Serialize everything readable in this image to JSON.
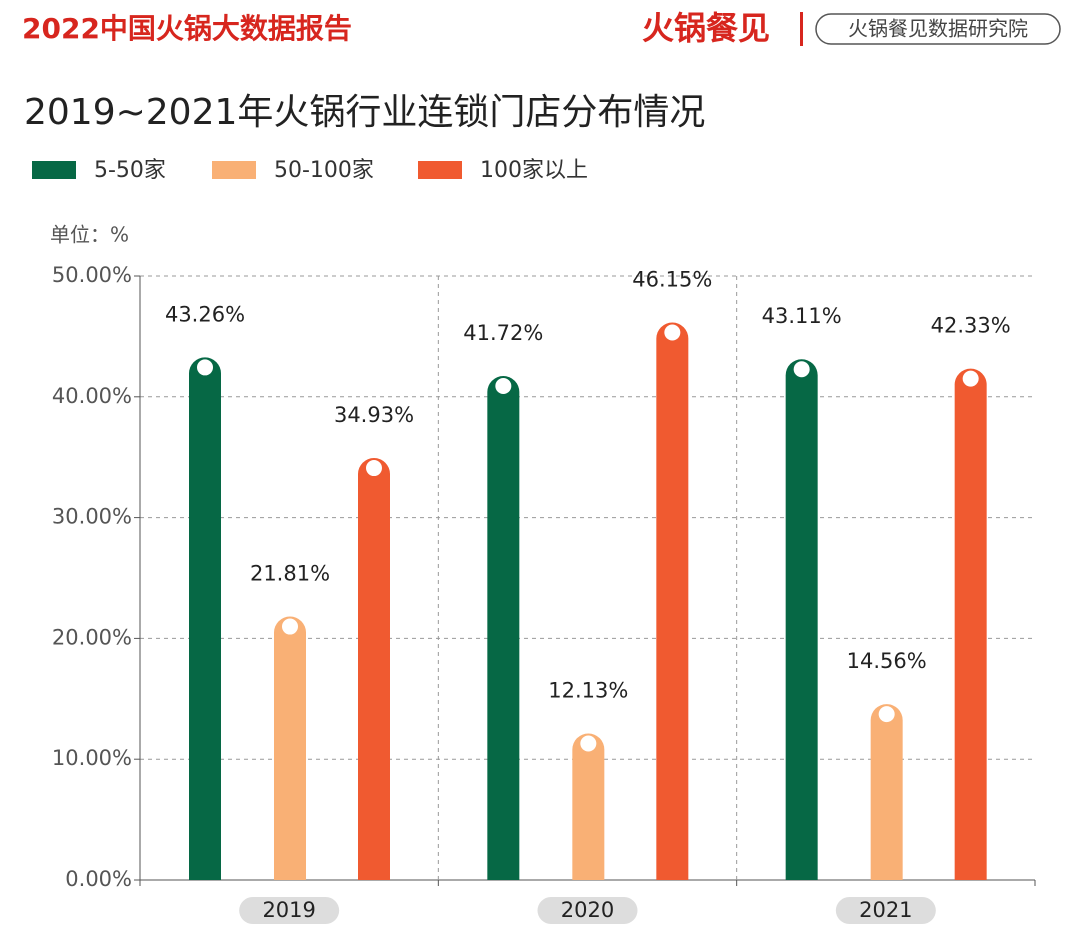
{
  "header": {
    "report": "2022中国火锅大数据报告",
    "brand": "火锅餐见",
    "institute": "火锅餐见数据研究院"
  },
  "chart_data": {
    "type": "bar",
    "title": "2019~2021年火锅行业连锁门店分布情况",
    "unit_label": "单位：%",
    "categories": [
      "2019",
      "2020",
      "2021"
    ],
    "series": [
      {
        "name": "5-50家",
        "color": "#066845",
        "values": [
          43.26,
          41.72,
          43.11
        ],
        "value_labels": [
          "43.26%",
          "41.72%",
          "43.11%"
        ]
      },
      {
        "name": "50-100家",
        "color": "#f9b075",
        "values": [
          21.81,
          12.13,
          14.56
        ],
        "value_labels": [
          "21.81%",
          "12.13%",
          "14.56%"
        ]
      },
      {
        "name": "100家以上",
        "color": "#f05a30",
        "values": [
          34.93,
          46.15,
          42.33
        ],
        "value_labels": [
          "34.93%",
          "46.15%",
          "42.33%"
        ]
      }
    ],
    "ylim": [
      0,
      50
    ],
    "yticks": [
      {
        "value": 0,
        "label": "0.00%"
      },
      {
        "value": 10,
        "label": "10.00%"
      },
      {
        "value": 20,
        "label": "20.00%"
      },
      {
        "value": 30,
        "label": "30.00%"
      },
      {
        "value": 40,
        "label": "40.00%"
      },
      {
        "value": 50,
        "label": "50.00%"
      }
    ],
    "grid": true
  }
}
